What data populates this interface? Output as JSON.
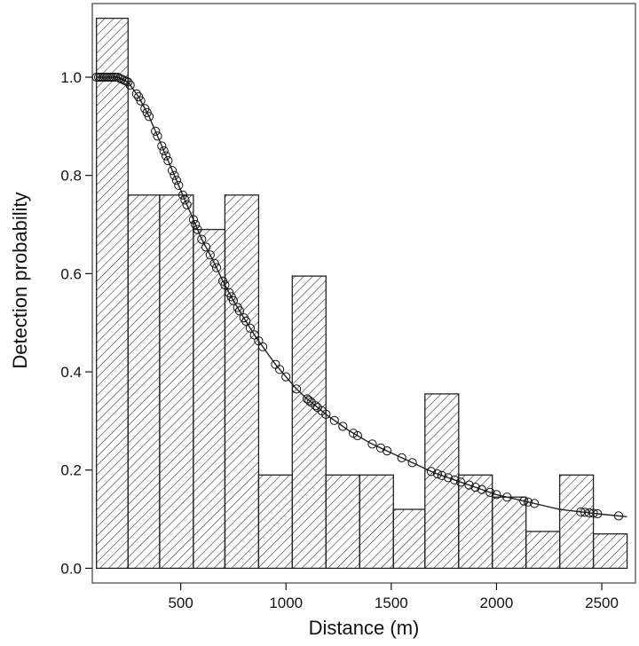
{
  "chart_data": {
    "type": "bar",
    "subtype": "histogram-with-fitted-curve",
    "title": "",
    "xlabel": "Distance (m)",
    "ylabel": "Detection probability",
    "xlim": [
      80,
      2660
    ],
    "ylim": [
      -0.03,
      1.15
    ],
    "xticks": [
      500,
      1000,
      1500,
      2000,
      2500
    ],
    "yticks": [
      0.0,
      0.2,
      0.4,
      0.6,
      0.8,
      1.0
    ],
    "xtick_labels": [
      "500",
      "1000",
      "1500",
      "2000",
      "2500"
    ],
    "ytick_labels": [
      "0.0",
      "0.2",
      "0.4",
      "0.6",
      "0.8",
      "1.0"
    ],
    "grid": false,
    "bar_fill": "hatched",
    "series": [
      {
        "kind": "histogram",
        "bins": [
          {
            "x0": 100,
            "x1": 250,
            "value": 1.12
          },
          {
            "x0": 250,
            "x1": 400,
            "value": 0.76
          },
          {
            "x0": 400,
            "x1": 560,
            "value": 0.76
          },
          {
            "x0": 560,
            "x1": 710,
            "value": 0.69
          },
          {
            "x0": 710,
            "x1": 870,
            "value": 0.76
          },
          {
            "x0": 870,
            "x1": 1030,
            "value": 0.19
          },
          {
            "x0": 1030,
            "x1": 1190,
            "value": 0.595
          },
          {
            "x0": 1190,
            "x1": 1350,
            "value": 0.19
          },
          {
            "x0": 1350,
            "x1": 1510,
            "value": 0.19
          },
          {
            "x0": 1510,
            "x1": 1660,
            "value": 0.12
          },
          {
            "x0": 1660,
            "x1": 1820,
            "value": 0.355
          },
          {
            "x0": 1820,
            "x1": 1980,
            "value": 0.19
          },
          {
            "x0": 1980,
            "x1": 2140,
            "value": 0.145
          },
          {
            "x0": 2140,
            "x1": 2300,
            "value": 0.075
          },
          {
            "x0": 2300,
            "x1": 2460,
            "value": 0.19
          },
          {
            "x0": 2460,
            "x1": 2620,
            "value": 0.07
          }
        ]
      },
      {
        "kind": "fitted-curve",
        "points": [
          [
            100,
            1.0
          ],
          [
            150,
            1.0
          ],
          [
            200,
            1.0
          ],
          [
            250,
            0.99
          ],
          [
            300,
            0.96
          ],
          [
            350,
            0.92
          ],
          [
            400,
            0.87
          ],
          [
            450,
            0.82
          ],
          [
            500,
            0.77
          ],
          [
            550,
            0.72
          ],
          [
            600,
            0.67
          ],
          [
            650,
            0.63
          ],
          [
            700,
            0.585
          ],
          [
            750,
            0.545
          ],
          [
            800,
            0.51
          ],
          [
            850,
            0.475
          ],
          [
            900,
            0.445
          ],
          [
            950,
            0.415
          ],
          [
            1000,
            0.39
          ],
          [
            1050,
            0.365
          ],
          [
            1100,
            0.345
          ],
          [
            1200,
            0.31
          ],
          [
            1300,
            0.28
          ],
          [
            1400,
            0.255
          ],
          [
            1500,
            0.235
          ],
          [
            1600,
            0.215
          ],
          [
            1700,
            0.195
          ],
          [
            1800,
            0.18
          ],
          [
            1900,
            0.165
          ],
          [
            2000,
            0.15
          ],
          [
            2100,
            0.14
          ],
          [
            2200,
            0.13
          ],
          [
            2300,
            0.12
          ],
          [
            2400,
            0.115
          ],
          [
            2500,
            0.11
          ],
          [
            2620,
            0.105
          ]
        ]
      },
      {
        "kind": "observations",
        "x": [
          100,
          110,
          120,
          130,
          140,
          150,
          160,
          170,
          180,
          190,
          200,
          210,
          220,
          230,
          240,
          250,
          260,
          290,
          300,
          310,
          330,
          340,
          350,
          380,
          390,
          410,
          420,
          430,
          440,
          460,
          470,
          480,
          490,
          510,
          520,
          530,
          560,
          570,
          580,
          600,
          620,
          640,
          660,
          670,
          700,
          710,
          730,
          740,
          750,
          770,
          780,
          800,
          810,
          830,
          850,
          870,
          890,
          950,
          970,
          1000,
          1050,
          1100,
          1110,
          1120,
          1140,
          1150,
          1170,
          1190,
          1230,
          1270,
          1320,
          1340,
          1410,
          1450,
          1480,
          1550,
          1600,
          1690,
          1720,
          1740,
          1770,
          1800,
          1830,
          1870,
          1900,
          1930,
          1970,
          2000,
          2050,
          2130,
          2150,
          2180,
          2400,
          2420,
          2440,
          2460,
          2480,
          2580
        ]
      }
    ]
  }
}
